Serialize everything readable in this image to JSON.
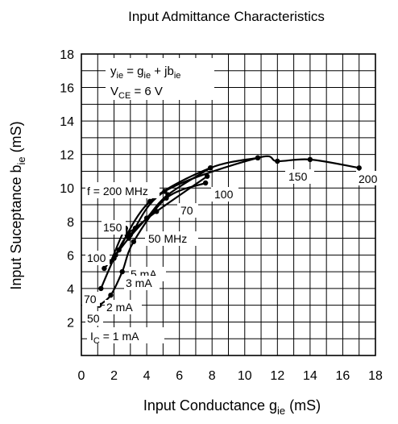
{
  "chart_data": {
    "type": "line",
    "title": "Input Admittance Characteristics",
    "xlabel": {
      "main": "Input Conductance  g",
      "sub": "ie",
      "unit": "  (mS)"
    },
    "ylabel": {
      "main": "Input Suceptance  b",
      "sub": "ie",
      "unit": "  (mS)"
    },
    "xlim": [
      0,
      18
    ],
    "ylim": [
      0,
      18
    ],
    "grid": true,
    "x_ticks": [
      "0",
      "2",
      "4",
      "6",
      "8",
      "10",
      "12",
      "14",
      "16",
      "18"
    ],
    "y_ticks": [
      "2",
      "4",
      "6",
      "8",
      "10",
      "12",
      "14",
      "16",
      "18"
    ],
    "legend": {
      "line1": {
        "a": "y",
        "a_sub": "ie",
        "b": " = g",
        "b_sub": "ie",
        "c": " + jb",
        "c_sub": "ie"
      },
      "line2": {
        "a": "V",
        "a_sub": "CE",
        "b": " = 6 V"
      }
    },
    "series": [
      {
        "name": "50",
        "points": [
          [
            1.1,
            3.0
          ],
          [
            1.8,
            3.6
          ],
          [
            2.5,
            5.0
          ],
          [
            3.2,
            6.8
          ],
          [
            5.2,
            9.4
          ],
          [
            7.6,
            10.3
          ]
        ]
      },
      {
        "name": "70",
        "points": [
          [
            1.2,
            4.0
          ],
          [
            2.0,
            5.8
          ],
          [
            2.8,
            7.2
          ],
          [
            3.3,
            7.6
          ],
          [
            4.6,
            8.6
          ],
          [
            7.7,
            10.7
          ]
        ]
      },
      {
        "name": "100",
        "points": [
          [
            1.4,
            5.2
          ],
          [
            2.1,
            6.0
          ],
          [
            2.9,
            7.0
          ],
          [
            4.0,
            8.2
          ],
          [
            5.3,
            9.6
          ],
          [
            7.9,
            11.2
          ]
        ]
      },
      {
        "name": "150",
        "points": [
          [
            1.8,
            5.6
          ],
          [
            2.7,
            7.6
          ],
          [
            3.0,
            7.2
          ],
          [
            5.1,
            9.8
          ],
          [
            10.8,
            11.8
          ],
          [
            12.0,
            11.6
          ],
          [
            14.0,
            11.7
          ],
          [
            17.0,
            11.2
          ]
        ]
      },
      {
        "name": "200",
        "points": [
          [
            2.3,
            6.3
          ],
          [
            4.2,
            9.2
          ],
          [
            7.9,
            11.2
          ],
          [
            10.8,
            11.8
          ]
        ]
      }
    ],
    "annotations": {
      "f_200": "f = 200 MHz",
      "mhz50": "50 MHz",
      "l150": "150",
      "l100": "100",
      "l70": "70",
      "l50": "50",
      "ma5": "5 mA",
      "ma3": "3 mA",
      "ma2": "2 mA",
      "ic": "I",
      "ic_sub": "C",
      "ic_rest": " = 1 mA",
      "r100": "100",
      "r70": "70",
      "r150": "150",
      "r200": "200"
    }
  }
}
